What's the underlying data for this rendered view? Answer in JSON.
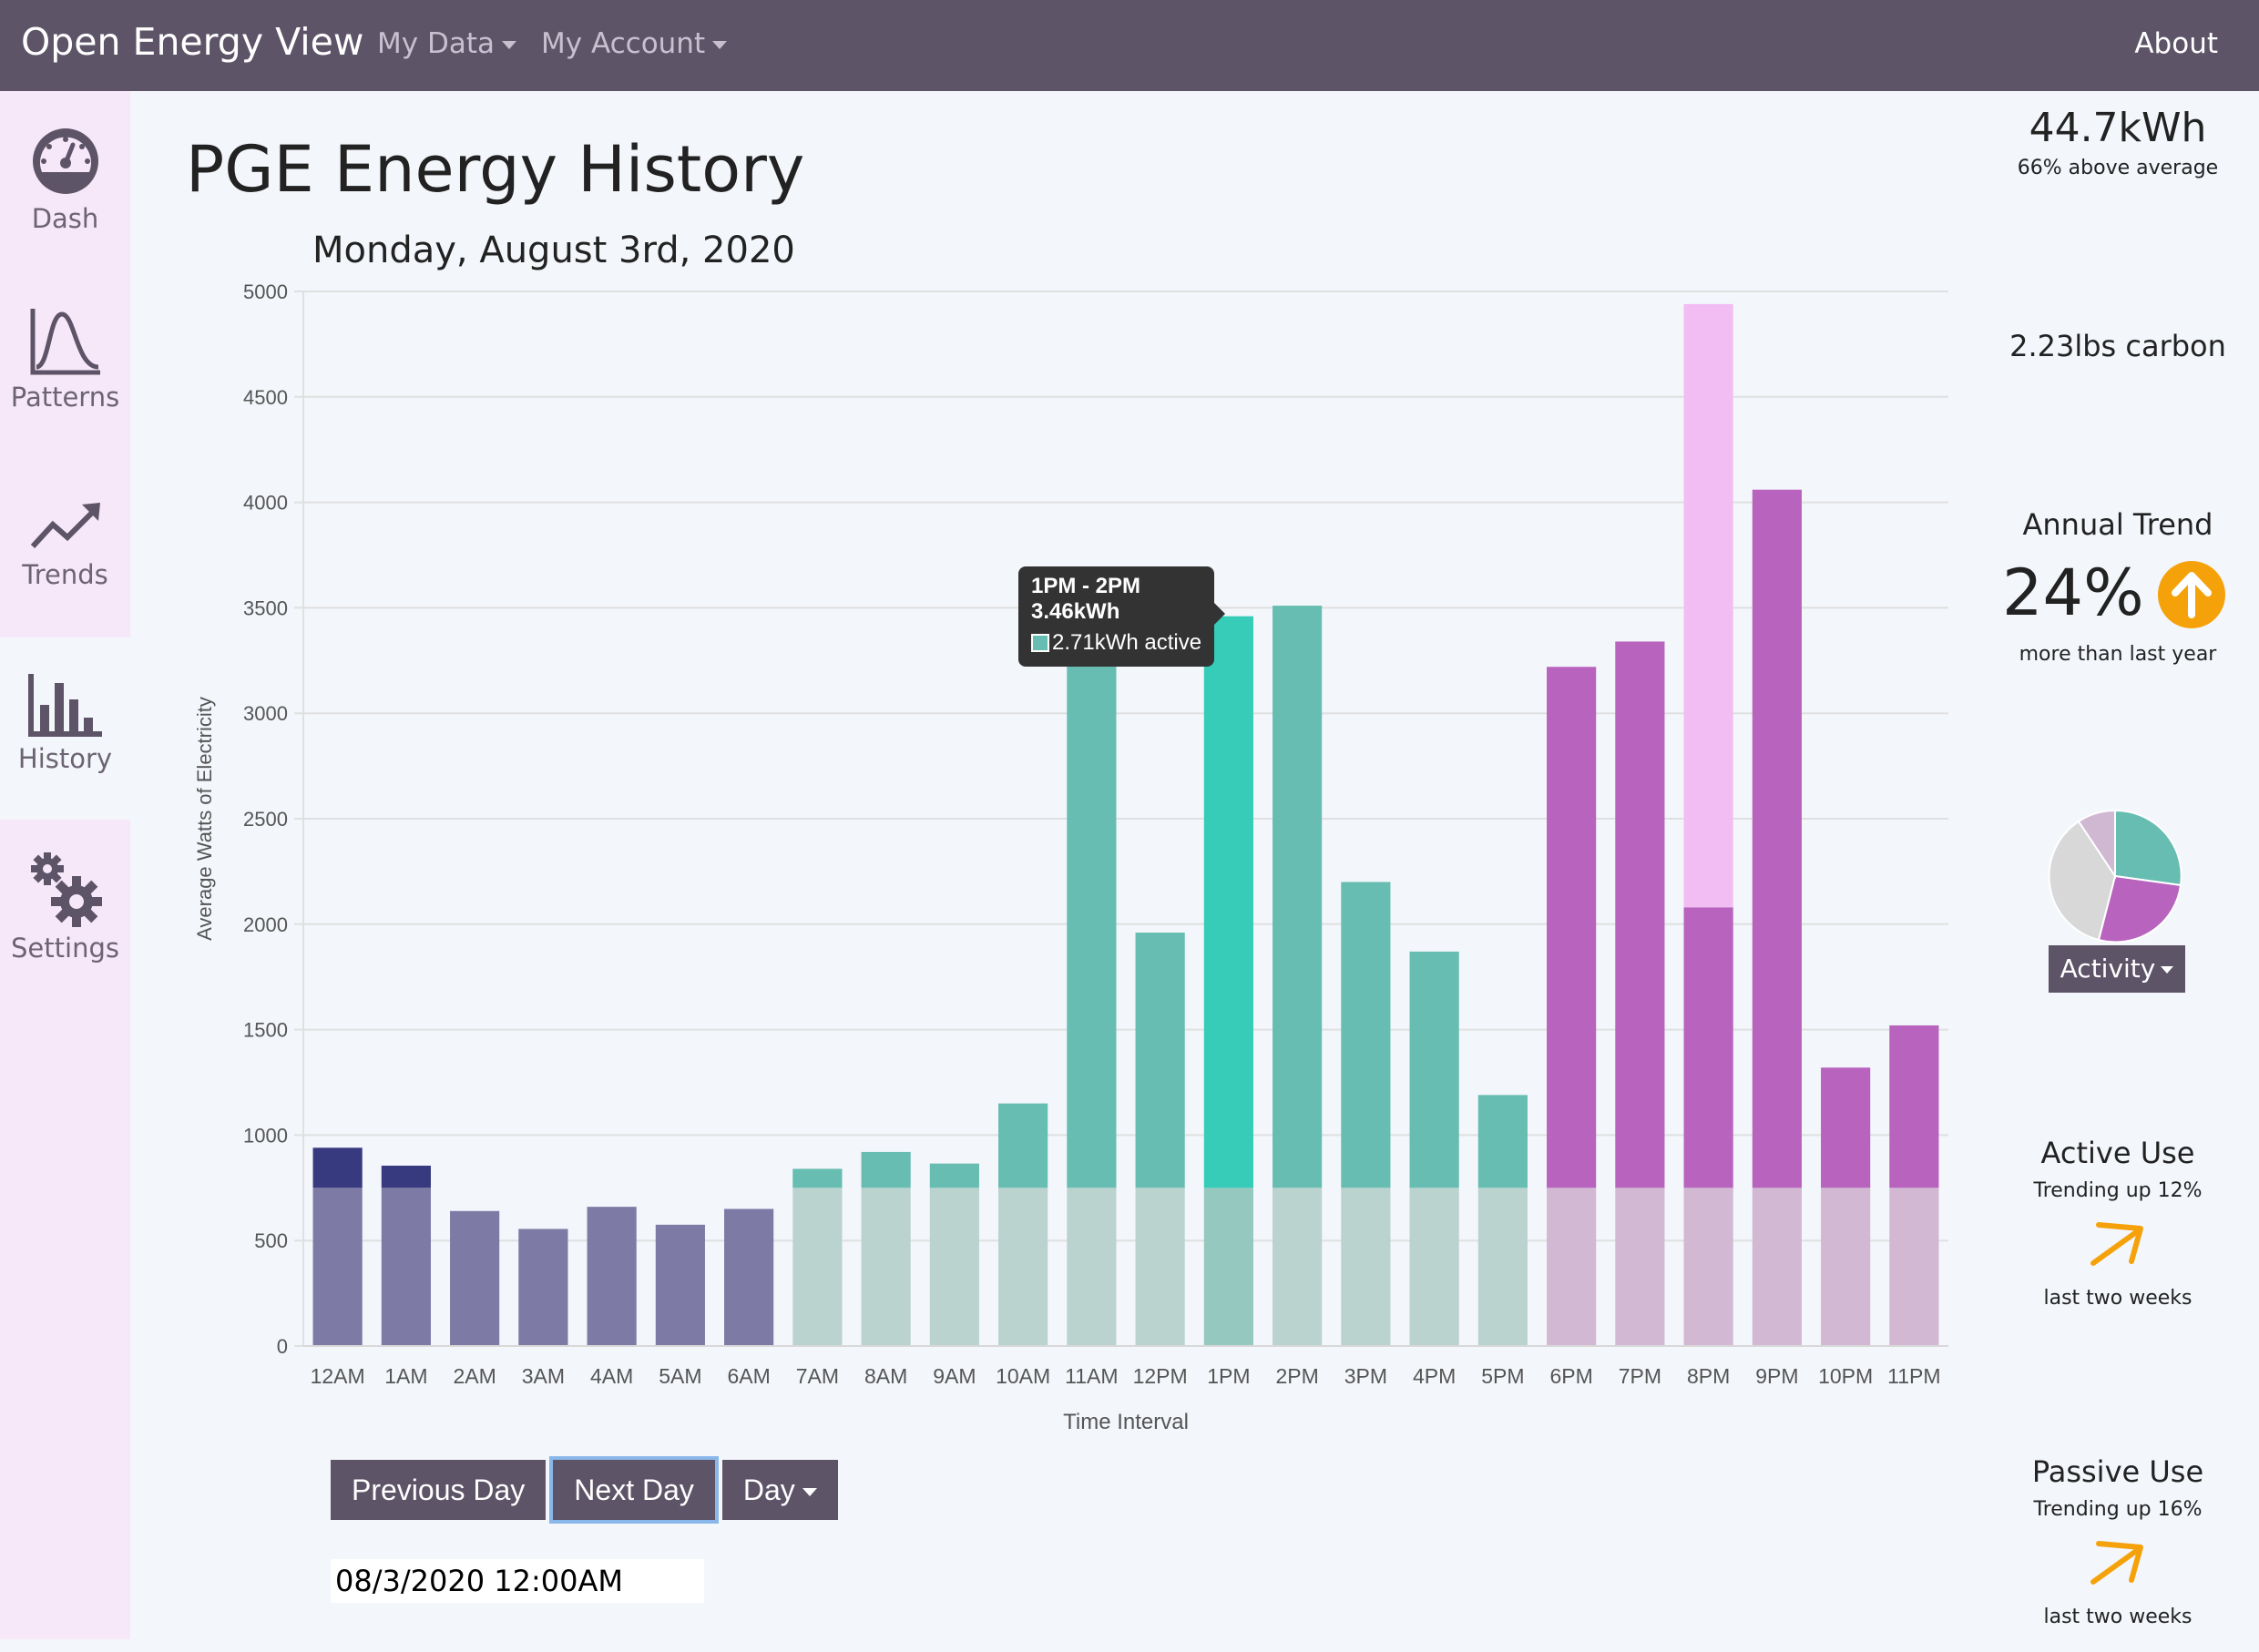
{
  "navbar": {
    "brand": "Open Energy View",
    "my_data": "My Data",
    "my_account": "My Account",
    "about": "About"
  },
  "sidebar": {
    "items": [
      {
        "label": "Dash",
        "icon": "gauge-icon"
      },
      {
        "label": "Patterns",
        "icon": "bell-curve-icon"
      },
      {
        "label": "Trends",
        "icon": "trend-line-icon"
      },
      {
        "label": "History",
        "icon": "bar-chart-icon",
        "active": true
      },
      {
        "label": "Settings",
        "icon": "gears-icon"
      }
    ]
  },
  "main": {
    "title": "PGE Energy History",
    "subtitle": "Monday, August 3rd, 2020",
    "buttons": {
      "previous": "Previous Day",
      "next": "Next Day",
      "period": "Day"
    },
    "date_value": "08/3/2020 12:00AM"
  },
  "tooltip": {
    "range": "1PM - 2PM",
    "total": "3.46kWh",
    "active": "2.71kWh active"
  },
  "right_panel": {
    "usage": "44.7kWh",
    "usage_note": "66% above average",
    "carbon": "2.23lbs carbon",
    "trend_title": "Annual Trend",
    "trend_value": "24%",
    "trend_note": "more than last year",
    "activity_button": "Activity",
    "active_use": {
      "title": "Active Use",
      "note": "Trending up 12%",
      "period": "last two weeks"
    },
    "passive_use": {
      "title": "Passive Use",
      "note": "Trending up 16%",
      "period": "last two weeks"
    },
    "colors": {
      "trend_arrow": "#f5a20a",
      "pie_teal": "#67bdb1",
      "pie_purple": "#b863be",
      "pie_gray": "#d8d8d8",
      "pie_lilac": "#d0b8d2"
    }
  },
  "chart_data": {
    "type": "bar",
    "stacked": true,
    "xlabel": "Time Interval",
    "ylabel": "Average Watts of Electricity",
    "ylim": [
      0,
      5000
    ],
    "yticks": [
      0,
      500,
      1000,
      1500,
      2000,
      2500,
      3000,
      3500,
      4000,
      4500,
      5000
    ],
    "grid": true,
    "categories": [
      "12AM",
      "1AM",
      "2AM",
      "3AM",
      "4AM",
      "5AM",
      "6AM",
      "7AM",
      "8AM",
      "9AM",
      "10AM",
      "11AM",
      "12PM",
      "1PM",
      "2PM",
      "3PM",
      "4PM",
      "5PM",
      "6PM",
      "7PM",
      "8PM",
      "9PM",
      "10PM",
      "11PM"
    ],
    "series": [
      {
        "values": [
          750,
          750,
          640,
          555,
          660,
          575,
          650,
          750,
          750,
          750,
          750,
          750,
          750,
          750,
          750,
          750,
          750,
          750,
          750,
          750,
          750,
          750,
          750,
          750
        ]
      },
      {
        "values": [
          190,
          105,
          0,
          0,
          0,
          0,
          0,
          90,
          170,
          115,
          400,
          2640,
          1210,
          2710,
          2760,
          1450,
          1120,
          440,
          2470,
          2590,
          1330,
          3310,
          570,
          770
        ]
      },
      {
        "values": [
          0,
          0,
          0,
          0,
          0,
          0,
          0,
          0,
          0,
          0,
          0,
          0,
          0,
          0,
          0,
          0,
          0,
          0,
          0,
          0,
          2860,
          0,
          0,
          0
        ]
      }
    ],
    "colors": {
      "night_base": "#7d7aa6",
      "night_active": "#383a80",
      "day_base": "#bad3cf",
      "day_active": "#67bdb1",
      "highlight_base": "#95c8bf",
      "highlight_active": "#36ccb8",
      "evening_base": "#d2b8d2",
      "evening_active": "#b863be",
      "evening_extra": "#f2bdf2"
    }
  }
}
